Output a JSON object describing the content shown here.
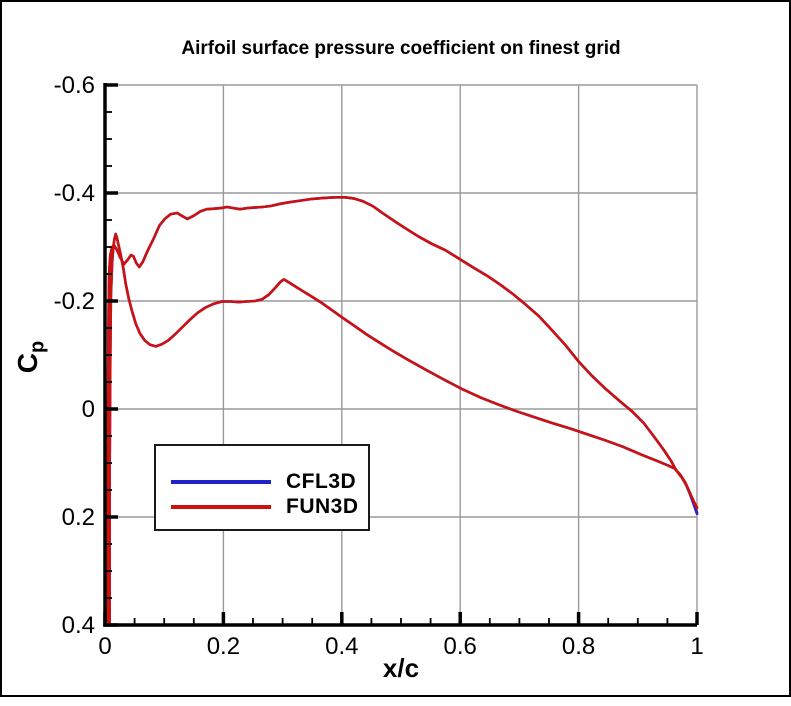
{
  "chart_data": {
    "type": "line",
    "title": "Airfoil surface pressure coefficient on finest grid",
    "xlabel": "x/c",
    "ylabel": "Cp",
    "ylabel_main": "C",
    "ylabel_sub": "p",
    "x_axis": {
      "min": 0,
      "max": 1,
      "major_ticks": [
        0,
        0.2,
        0.4,
        0.6,
        0.8,
        1
      ],
      "tick_labels": [
        "0",
        "0.2",
        "0.4",
        "0.6",
        "0.8",
        "1"
      ],
      "minor_tick_step": 0.05
    },
    "y_axis": {
      "min": -0.6,
      "max": 0.4,
      "inverted": true,
      "major_ticks": [
        -0.6,
        -0.4,
        -0.2,
        0,
        0.2,
        0.4
      ],
      "tick_labels": [
        "-0.6",
        "-0.4",
        "-0.2",
        "0",
        "0.2",
        "0.4"
      ],
      "minor_tick_step": 0.05
    },
    "grid": {
      "show": true,
      "color": "#9a9a9a"
    },
    "axis_color": "#000000",
    "legend": {
      "position": "lower-left",
      "border_color": "#1a1a1a"
    },
    "series": [
      {
        "name": "CFL3D",
        "color": "#2222CC",
        "upper_surface": [
          [
            0.005,
            0.4
          ],
          [
            0.005,
            0.0
          ],
          [
            0.006,
            -0.18
          ],
          [
            0.007,
            -0.25
          ],
          [
            0.009,
            -0.285
          ],
          [
            0.012,
            -0.3
          ],
          [
            0.016,
            -0.302
          ],
          [
            0.02,
            -0.295
          ],
          [
            0.026,
            -0.28
          ],
          [
            0.032,
            -0.268
          ],
          [
            0.038,
            -0.276
          ],
          [
            0.044,
            -0.285
          ],
          [
            0.048,
            -0.283
          ],
          [
            0.053,
            -0.27
          ],
          [
            0.058,
            -0.263
          ],
          [
            0.064,
            -0.273
          ],
          [
            0.072,
            -0.293
          ],
          [
            0.082,
            -0.315
          ],
          [
            0.092,
            -0.34
          ],
          [
            0.101,
            -0.352
          ],
          [
            0.111,
            -0.361
          ],
          [
            0.122,
            -0.363
          ],
          [
            0.131,
            -0.357
          ],
          [
            0.139,
            -0.352
          ],
          [
            0.15,
            -0.358
          ],
          [
            0.161,
            -0.366
          ],
          [
            0.172,
            -0.37
          ],
          [
            0.184,
            -0.371
          ],
          [
            0.196,
            -0.372
          ],
          [
            0.206,
            -0.374
          ],
          [
            0.217,
            -0.372
          ],
          [
            0.228,
            -0.37
          ],
          [
            0.24,
            -0.372
          ],
          [
            0.252,
            -0.373
          ],
          [
            0.266,
            -0.374
          ],
          [
            0.28,
            -0.376
          ],
          [
            0.296,
            -0.38
          ],
          [
            0.312,
            -0.383
          ],
          [
            0.33,
            -0.386
          ],
          [
            0.35,
            -0.389
          ],
          [
            0.37,
            -0.391
          ],
          [
            0.39,
            -0.392
          ],
          [
            0.405,
            -0.392
          ],
          [
            0.42,
            -0.39
          ],
          [
            0.435,
            -0.385
          ],
          [
            0.452,
            -0.376
          ],
          [
            0.47,
            -0.362
          ],
          [
            0.49,
            -0.347
          ],
          [
            0.51,
            -0.333
          ],
          [
            0.53,
            -0.319
          ],
          [
            0.552,
            -0.306
          ],
          [
            0.575,
            -0.294
          ],
          [
            0.6,
            -0.277
          ],
          [
            0.622,
            -0.262
          ],
          [
            0.645,
            -0.247
          ],
          [
            0.668,
            -0.23
          ],
          [
            0.69,
            -0.212
          ],
          [
            0.712,
            -0.192
          ],
          [
            0.733,
            -0.172
          ],
          [
            0.755,
            -0.146
          ],
          [
            0.778,
            -0.118
          ],
          [
            0.8,
            -0.088
          ],
          [
            0.822,
            -0.062
          ],
          [
            0.845,
            -0.038
          ],
          [
            0.868,
            -0.016
          ],
          [
            0.89,
            0.004
          ],
          [
            0.91,
            0.026
          ],
          [
            0.928,
            0.052
          ],
          [
            0.944,
            0.076
          ],
          [
            0.956,
            0.096
          ],
          [
            0.963,
            0.11
          ],
          [
            0.968,
            0.118
          ],
          [
            0.975,
            0.128
          ],
          [
            0.982,
            0.141
          ],
          [
            0.989,
            0.16
          ],
          [
            0.995,
            0.178
          ],
          [
            1.0,
            0.194
          ]
        ],
        "lower_surface": [
          [
            0.008,
            0.4
          ],
          [
            0.008,
            0.1
          ],
          [
            0.009,
            -0.1
          ],
          [
            0.01,
            -0.21
          ],
          [
            0.012,
            -0.27
          ],
          [
            0.014,
            -0.3
          ],
          [
            0.016,
            -0.315
          ],
          [
            0.018,
            -0.324
          ],
          [
            0.02,
            -0.318
          ],
          [
            0.023,
            -0.303
          ],
          [
            0.027,
            -0.283
          ],
          [
            0.031,
            -0.26
          ],
          [
            0.035,
            -0.232
          ],
          [
            0.04,
            -0.205
          ],
          [
            0.046,
            -0.18
          ],
          [
            0.052,
            -0.158
          ],
          [
            0.059,
            -0.14
          ],
          [
            0.067,
            -0.127
          ],
          [
            0.076,
            -0.119
          ],
          [
            0.086,
            -0.116
          ],
          [
            0.096,
            -0.12
          ],
          [
            0.107,
            -0.127
          ],
          [
            0.118,
            -0.138
          ],
          [
            0.13,
            -0.151
          ],
          [
            0.143,
            -0.165
          ],
          [
            0.156,
            -0.178
          ],
          [
            0.17,
            -0.188
          ],
          [
            0.184,
            -0.195
          ],
          [
            0.198,
            -0.199
          ],
          [
            0.212,
            -0.199
          ],
          [
            0.226,
            -0.198
          ],
          [
            0.24,
            -0.199
          ],
          [
            0.253,
            -0.2
          ],
          [
            0.265,
            -0.203
          ],
          [
            0.277,
            -0.212
          ],
          [
            0.288,
            -0.225
          ],
          [
            0.296,
            -0.235
          ],
          [
            0.302,
            -0.24
          ],
          [
            0.31,
            -0.235
          ],
          [
            0.32,
            -0.228
          ],
          [
            0.333,
            -0.219
          ],
          [
            0.348,
            -0.209
          ],
          [
            0.364,
            -0.198
          ],
          [
            0.382,
            -0.184
          ],
          [
            0.4,
            -0.17
          ],
          [
            0.42,
            -0.155
          ],
          [
            0.442,
            -0.138
          ],
          [
            0.465,
            -0.122
          ],
          [
            0.49,
            -0.105
          ],
          [
            0.515,
            -0.089
          ],
          [
            0.545,
            -0.071
          ],
          [
            0.575,
            -0.053
          ],
          [
            0.605,
            -0.036
          ],
          [
            0.635,
            -0.021
          ],
          [
            0.665,
            -0.008
          ],
          [
            0.695,
            0.004
          ],
          [
            0.725,
            0.015
          ],
          [
            0.755,
            0.026
          ],
          [
            0.785,
            0.036
          ],
          [
            0.815,
            0.047
          ],
          [
            0.845,
            0.058
          ],
          [
            0.875,
            0.07
          ],
          [
            0.905,
            0.084
          ],
          [
            0.93,
            0.095
          ],
          [
            0.95,
            0.104
          ],
          [
            0.962,
            0.11
          ],
          [
            0.972,
            0.122
          ],
          [
            0.98,
            0.136
          ],
          [
            0.988,
            0.157
          ],
          [
            0.994,
            0.174
          ],
          [
            1.0,
            0.192
          ]
        ]
      },
      {
        "name": "FUN3D",
        "color": "#CC1111",
        "upper_surface": [
          [
            0.005,
            0.4
          ],
          [
            0.005,
            0.0
          ],
          [
            0.006,
            -0.18
          ],
          [
            0.007,
            -0.25
          ],
          [
            0.009,
            -0.285
          ],
          [
            0.012,
            -0.3
          ],
          [
            0.016,
            -0.302
          ],
          [
            0.02,
            -0.295
          ],
          [
            0.026,
            -0.28
          ],
          [
            0.032,
            -0.268
          ],
          [
            0.038,
            -0.276
          ],
          [
            0.044,
            -0.285
          ],
          [
            0.048,
            -0.283
          ],
          [
            0.053,
            -0.27
          ],
          [
            0.058,
            -0.263
          ],
          [
            0.064,
            -0.273
          ],
          [
            0.072,
            -0.293
          ],
          [
            0.082,
            -0.315
          ],
          [
            0.092,
            -0.34
          ],
          [
            0.101,
            -0.352
          ],
          [
            0.111,
            -0.361
          ],
          [
            0.122,
            -0.363
          ],
          [
            0.131,
            -0.357
          ],
          [
            0.139,
            -0.352
          ],
          [
            0.15,
            -0.358
          ],
          [
            0.161,
            -0.366
          ],
          [
            0.172,
            -0.37
          ],
          [
            0.184,
            -0.371
          ],
          [
            0.196,
            -0.372
          ],
          [
            0.206,
            -0.374
          ],
          [
            0.217,
            -0.372
          ],
          [
            0.228,
            -0.37
          ],
          [
            0.24,
            -0.372
          ],
          [
            0.252,
            -0.373
          ],
          [
            0.266,
            -0.374
          ],
          [
            0.28,
            -0.376
          ],
          [
            0.296,
            -0.38
          ],
          [
            0.312,
            -0.383
          ],
          [
            0.33,
            -0.386
          ],
          [
            0.35,
            -0.389
          ],
          [
            0.37,
            -0.391
          ],
          [
            0.39,
            -0.392
          ],
          [
            0.405,
            -0.392
          ],
          [
            0.42,
            -0.39
          ],
          [
            0.435,
            -0.385
          ],
          [
            0.452,
            -0.376
          ],
          [
            0.47,
            -0.362
          ],
          [
            0.49,
            -0.347
          ],
          [
            0.51,
            -0.333
          ],
          [
            0.53,
            -0.319
          ],
          [
            0.552,
            -0.306
          ],
          [
            0.575,
            -0.294
          ],
          [
            0.6,
            -0.277
          ],
          [
            0.622,
            -0.262
          ],
          [
            0.645,
            -0.247
          ],
          [
            0.668,
            -0.23
          ],
          [
            0.69,
            -0.212
          ],
          [
            0.712,
            -0.192
          ],
          [
            0.733,
            -0.172
          ],
          [
            0.755,
            -0.146
          ],
          [
            0.778,
            -0.118
          ],
          [
            0.8,
            -0.088
          ],
          [
            0.822,
            -0.062
          ],
          [
            0.845,
            -0.038
          ],
          [
            0.868,
            -0.016
          ],
          [
            0.89,
            0.004
          ],
          [
            0.91,
            0.026
          ],
          [
            0.928,
            0.052
          ],
          [
            0.944,
            0.076
          ],
          [
            0.956,
            0.096
          ],
          [
            0.963,
            0.11
          ],
          [
            0.968,
            0.118
          ],
          [
            0.975,
            0.128
          ],
          [
            0.982,
            0.141
          ],
          [
            0.989,
            0.158
          ],
          [
            0.995,
            0.172
          ],
          [
            1.0,
            0.184
          ]
        ],
        "lower_surface": [
          [
            0.008,
            0.4
          ],
          [
            0.008,
            0.1
          ],
          [
            0.009,
            -0.1
          ],
          [
            0.01,
            -0.21
          ],
          [
            0.012,
            -0.27
          ],
          [
            0.014,
            -0.3
          ],
          [
            0.016,
            -0.315
          ],
          [
            0.018,
            -0.324
          ],
          [
            0.02,
            -0.318
          ],
          [
            0.023,
            -0.303
          ],
          [
            0.027,
            -0.283
          ],
          [
            0.031,
            -0.26
          ],
          [
            0.035,
            -0.232
          ],
          [
            0.04,
            -0.205
          ],
          [
            0.046,
            -0.18
          ],
          [
            0.052,
            -0.158
          ],
          [
            0.059,
            -0.14
          ],
          [
            0.067,
            -0.127
          ],
          [
            0.076,
            -0.119
          ],
          [
            0.086,
            -0.116
          ],
          [
            0.096,
            -0.12
          ],
          [
            0.107,
            -0.127
          ],
          [
            0.118,
            -0.138
          ],
          [
            0.13,
            -0.151
          ],
          [
            0.143,
            -0.165
          ],
          [
            0.156,
            -0.178
          ],
          [
            0.17,
            -0.188
          ],
          [
            0.184,
            -0.195
          ],
          [
            0.198,
            -0.199
          ],
          [
            0.212,
            -0.199
          ],
          [
            0.226,
            -0.198
          ],
          [
            0.24,
            -0.199
          ],
          [
            0.253,
            -0.2
          ],
          [
            0.265,
            -0.203
          ],
          [
            0.277,
            -0.212
          ],
          [
            0.288,
            -0.225
          ],
          [
            0.296,
            -0.235
          ],
          [
            0.302,
            -0.24
          ],
          [
            0.31,
            -0.235
          ],
          [
            0.32,
            -0.228
          ],
          [
            0.333,
            -0.219
          ],
          [
            0.348,
            -0.209
          ],
          [
            0.364,
            -0.198
          ],
          [
            0.382,
            -0.184
          ],
          [
            0.4,
            -0.17
          ],
          [
            0.42,
            -0.155
          ],
          [
            0.442,
            -0.138
          ],
          [
            0.465,
            -0.122
          ],
          [
            0.49,
            -0.105
          ],
          [
            0.515,
            -0.089
          ],
          [
            0.545,
            -0.071
          ],
          [
            0.575,
            -0.053
          ],
          [
            0.605,
            -0.036
          ],
          [
            0.635,
            -0.021
          ],
          [
            0.665,
            -0.008
          ],
          [
            0.695,
            0.004
          ],
          [
            0.725,
            0.015
          ],
          [
            0.755,
            0.026
          ],
          [
            0.785,
            0.036
          ],
          [
            0.815,
            0.047
          ],
          [
            0.845,
            0.058
          ],
          [
            0.875,
            0.07
          ],
          [
            0.905,
            0.084
          ],
          [
            0.93,
            0.095
          ],
          [
            0.95,
            0.104
          ],
          [
            0.962,
            0.11
          ],
          [
            0.972,
            0.122
          ],
          [
            0.98,
            0.136
          ],
          [
            0.988,
            0.155
          ],
          [
            0.994,
            0.17
          ],
          [
            1.0,
            0.182
          ]
        ]
      }
    ]
  }
}
